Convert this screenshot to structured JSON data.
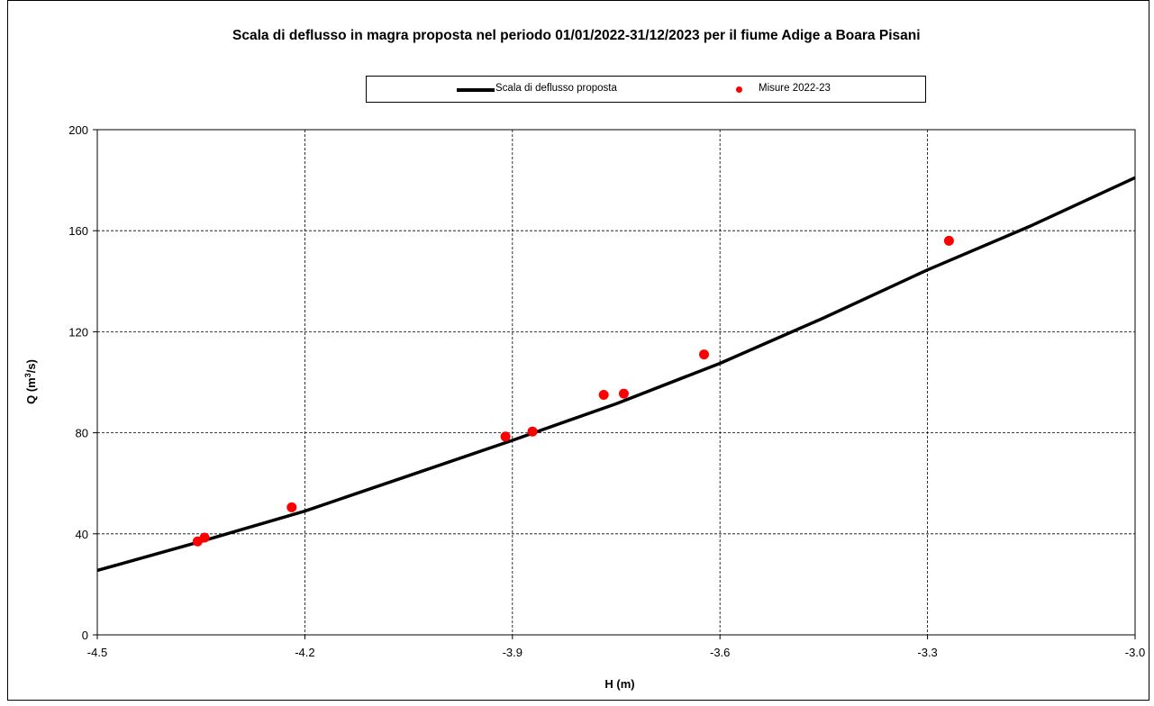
{
  "chart_data": {
    "type": "scatter",
    "title": "Scala di deflusso in magra proposta nel periodo 01/01/2022-31/12/2023  per il fiume Adige a Boara Pisani",
    "xlabel": "H (m)",
    "ylabel_main": "Q (m",
    "ylabel_sup": "3",
    "ylabel_tail": "/s)",
    "xlim": [
      -4.5,
      -3.0
    ],
    "ylim": [
      0,
      200
    ],
    "xticks": [
      -4.5,
      -4.2,
      -3.9,
      -3.6,
      -3.3,
      -3.0
    ],
    "xtick_labels": [
      "-4.5",
      "-4.2",
      "-3.9",
      "-3.6",
      "-3.3",
      "-3.0"
    ],
    "yticks": [
      0,
      40,
      80,
      120,
      160,
      200
    ],
    "ytick_labels": [
      "0",
      "40",
      "80",
      "120",
      "160",
      "200"
    ],
    "grid": true,
    "legend_position": "top",
    "series": [
      {
        "name": "Scala di deflusso proposta",
        "kind": "line",
        "color": "#000000",
        "x": [
          -4.5,
          -4.35,
          -4.2,
          -4.05,
          -3.9,
          -3.75,
          -3.6,
          -3.45,
          -3.3,
          -3.15,
          -3.0
        ],
        "y": [
          25.5,
          37,
          49,
          63,
          77,
          91.5,
          107.5,
          125.5,
          144.5,
          162,
          181
        ]
      },
      {
        "name": "Misure 2022-23",
        "kind": "scatter",
        "color": "#ff0000",
        "x": [
          -4.355,
          -4.345,
          -4.219,
          -3.91,
          -3.871,
          -3.768,
          -3.739,
          -3.623,
          -3.269
        ],
        "y": [
          37,
          38.5,
          50.5,
          78.5,
          80.5,
          95,
          95.5,
          111,
          156
        ]
      }
    ]
  }
}
